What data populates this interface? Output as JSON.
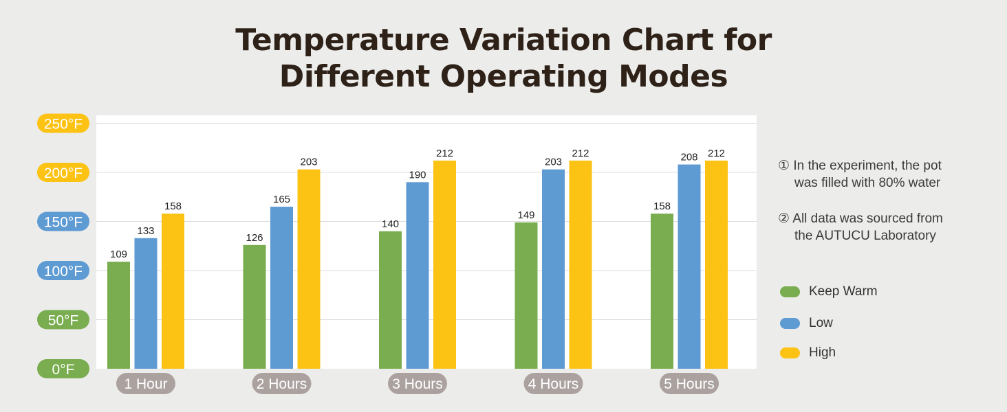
{
  "title_line1": "Temperature Variation Chart for",
  "title_line2": "Different Operating Modes",
  "notes": [
    {
      "marker": "①",
      "line1": "In the experiment, the pot",
      "line2": "was filled with 80% water"
    },
    {
      "marker": "②",
      "line1": "All data was sourced from",
      "line2": "the AUTUCU Laboratory"
    }
  ],
  "colors": {
    "keep_warm": "#79ad4f",
    "low": "#5f9bd3",
    "high": "#fcc214",
    "category_badge": "#aba2a0",
    "background": "#ececeb",
    "title": "#2e2118"
  },
  "chart_data": {
    "type": "bar",
    "title": "Temperature Variation Chart for Different Operating Modes",
    "categories": [
      "1 Hour",
      "2 Hours",
      "3 Hours",
      "4 Hours",
      "5 Hours"
    ],
    "series": [
      {
        "name": "Keep Warm",
        "color": "#79ad4f",
        "values": [
          109,
          126,
          140,
          149,
          158
        ]
      },
      {
        "name": "Low",
        "color": "#5f9bd3",
        "values": [
          133,
          165,
          190,
          203,
          208
        ]
      },
      {
        "name": "High",
        "color": "#fcc214",
        "values": [
          158,
          203,
          212,
          212,
          212
        ]
      }
    ],
    "y_ticks": [
      {
        "label": "0°F",
        "value": 0,
        "color": "#79ad4f"
      },
      {
        "label": "50°F",
        "value": 50,
        "color": "#79ad4f"
      },
      {
        "label": "100°F",
        "value": 100,
        "color": "#5f9bd3"
      },
      {
        "label": "150°F",
        "value": 150,
        "color": "#5f9bd3"
      },
      {
        "label": "200°F",
        "value": 200,
        "color": "#fcc214"
      },
      {
        "label": "250°F",
        "value": 250,
        "color": "#fcc214"
      }
    ],
    "ylim": [
      0,
      250
    ],
    "grid": true,
    "legend_position": "right",
    "xlabel": "",
    "ylabel": ""
  }
}
